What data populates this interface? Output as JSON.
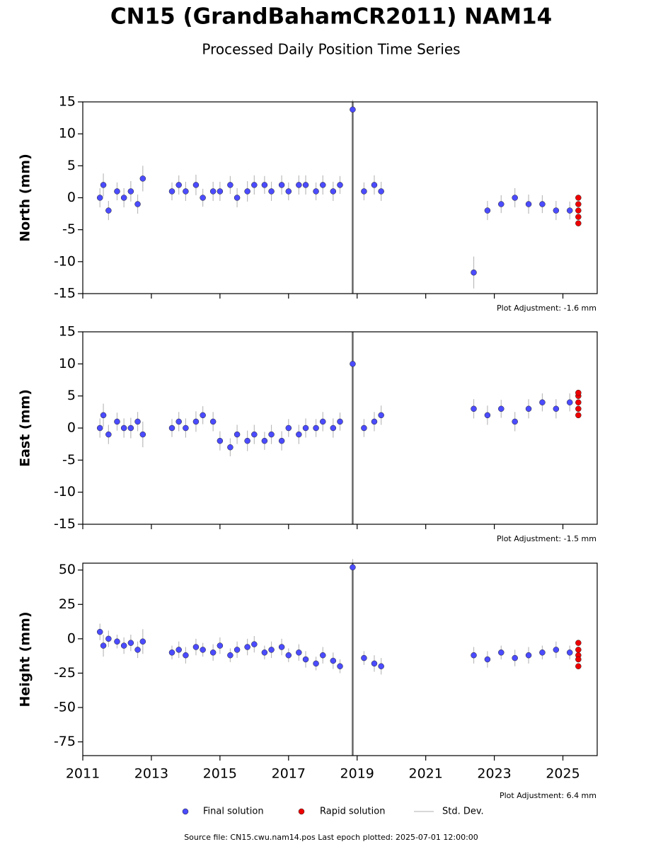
{
  "title": "CN15 (GrandBahamCR2011) NAM14",
  "subtitle": "Processed Daily Position Time Series",
  "errorbar_label": "Std. Dev.",
  "footer": "Source file: CN15.cwu.nam14.pos  Last epoch plotted: 2025-07-01 12:00:00",
  "chart_data": [
    {
      "type": "scatter",
      "ylabel": "North (mm)",
      "annotation": "Plot Adjustment: -1.6 mm",
      "xlim": [
        2011,
        2026
      ],
      "xticks": [
        2011,
        2013,
        2015,
        2017,
        2019,
        2021,
        2023,
        2025
      ],
      "ylim": [
        -15,
        15
      ],
      "yticks": [
        -15,
        -10,
        -5,
        0,
        5,
        10,
        15
      ],
      "event_lines": [
        2018.87
      ],
      "series": [
        {
          "name": "Final solution",
          "color": "#4b4bff",
          "x": [
            2011.5,
            2011.6,
            2011.75,
            2012.0,
            2012.2,
            2012.4,
            2012.6,
            2012.75,
            2013.6,
            2013.8,
            2014.0,
            2014.3,
            2014.5,
            2014.8,
            2015.0,
            2015.3,
            2015.5,
            2015.8,
            2016.0,
            2016.3,
            2016.5,
            2016.8,
            2017.0,
            2017.3,
            2017.5,
            2017.8,
            2018.0,
            2018.3,
            2018.5,
            2018.87,
            2019.2,
            2019.5,
            2019.7,
            2022.4,
            2022.8,
            2023.2,
            2023.6,
            2024.0,
            2024.4,
            2024.8,
            2025.2
          ],
          "values": [
            0,
            2,
            -2,
            1,
            0,
            1,
            -1,
            3,
            1,
            2,
            1,
            2,
            0,
            1,
            1,
            2,
            0,
            1,
            2,
            2,
            1,
            2,
            1,
            2,
            2,
            1,
            2,
            1,
            2,
            13.8,
            1,
            2,
            1,
            -11.7,
            -2,
            -1,
            0,
            -1,
            -1,
            -2,
            -2
          ],
          "errors": [
            1.5,
            1.8,
            1.5,
            1.4,
            1.5,
            1.6,
            1.5,
            2,
            1.4,
            1.5,
            1.5,
            1.6,
            1.4,
            1.5,
            1.5,
            1.4,
            1.5,
            1.6,
            1.5,
            1.4,
            1.5,
            1.5,
            1.4,
            1.5,
            1.5,
            1.4,
            1.5,
            1.5,
            1.4,
            1.5,
            1.4,
            1.5,
            1.5,
            2.5,
            1.5,
            1.4,
            1.5,
            1.5,
            1.4,
            1.5,
            1.4
          ]
        },
        {
          "name": "Rapid solution",
          "color": "#ee0000",
          "x": [
            2025.45,
            2025.45,
            2025.45,
            2025.45,
            2025.45
          ],
          "values": [
            0,
            -1,
            -2,
            -3,
            -4
          ]
        }
      ]
    },
    {
      "type": "scatter",
      "ylabel": "East (mm)",
      "annotation": "Plot Adjustment: -1.5 mm",
      "xlim": [
        2011,
        2026
      ],
      "xticks": [
        2011,
        2013,
        2015,
        2017,
        2019,
        2021,
        2023,
        2025
      ],
      "ylim": [
        -15,
        15
      ],
      "yticks": [
        -15,
        -10,
        -5,
        0,
        5,
        10,
        15
      ],
      "event_lines": [
        2018.87
      ],
      "series": [
        {
          "name": "Final solution",
          "color": "#4b4bff",
          "x": [
            2011.5,
            2011.6,
            2011.75,
            2012.0,
            2012.2,
            2012.4,
            2012.6,
            2012.75,
            2013.6,
            2013.8,
            2014.0,
            2014.3,
            2014.5,
            2014.8,
            2015.0,
            2015.3,
            2015.5,
            2015.8,
            2016.0,
            2016.3,
            2016.5,
            2016.8,
            2017.0,
            2017.3,
            2017.5,
            2017.8,
            2018.0,
            2018.3,
            2018.5,
            2018.87,
            2019.2,
            2019.5,
            2019.7,
            2022.4,
            2022.8,
            2023.2,
            2023.6,
            2024.0,
            2024.4,
            2024.8,
            2025.2
          ],
          "values": [
            0,
            2,
            -1,
            1,
            0,
            0,
            1,
            -1,
            0,
            1,
            0,
            1,
            2,
            1,
            -2,
            -3,
            -1,
            -2,
            -1,
            -2,
            -1,
            -2,
            0,
            -1,
            0,
            0,
            1,
            0,
            1,
            10,
            0,
            1,
            2,
            3,
            2,
            3,
            1,
            3,
            4,
            3,
            4
          ],
          "errors": [
            1.5,
            1.8,
            1.5,
            1.4,
            1.5,
            1.6,
            1.5,
            2,
            1.4,
            1.5,
            1.5,
            1.6,
            1.4,
            1.5,
            1.5,
            1.4,
            1.5,
            1.6,
            1.5,
            1.4,
            1.5,
            1.5,
            1.4,
            1.5,
            1.5,
            1.4,
            1.5,
            1.5,
            1.4,
            1.5,
            1.4,
            1.5,
            1.5,
            1.5,
            1.5,
            1.4,
            1.5,
            1.5,
            1.4,
            1.5,
            1.4
          ]
        },
        {
          "name": "Rapid solution",
          "color": "#ee0000",
          "x": [
            2025.45,
            2025.45,
            2025.45,
            2025.45,
            2025.45
          ],
          "values": [
            2,
            3,
            4,
            5,
            5.5
          ]
        }
      ]
    },
    {
      "type": "scatter",
      "ylabel": "Height (mm)",
      "annotation": "Plot Adjustment: 6.4 mm",
      "xlim": [
        2011,
        2026
      ],
      "xticks": [
        2011,
        2013,
        2015,
        2017,
        2019,
        2021,
        2023,
        2025
      ],
      "ylim": [
        -85,
        55
      ],
      "yticks": [
        -75,
        -50,
        -25,
        0,
        25,
        50
      ],
      "event_lines": [
        2018.87
      ],
      "series": [
        {
          "name": "Final solution",
          "color": "#4b4bff",
          "x": [
            2011.5,
            2011.6,
            2011.75,
            2012.0,
            2012.2,
            2012.4,
            2012.6,
            2012.75,
            2013.6,
            2013.8,
            2014.0,
            2014.3,
            2014.5,
            2014.8,
            2015.0,
            2015.3,
            2015.5,
            2015.8,
            2016.0,
            2016.3,
            2016.5,
            2016.8,
            2017.0,
            2017.3,
            2017.5,
            2017.8,
            2018.0,
            2018.3,
            2018.5,
            2018.87,
            2019.2,
            2019.5,
            2019.7,
            2022.4,
            2022.8,
            2023.2,
            2023.6,
            2024.0,
            2024.4,
            2024.8,
            2025.2
          ],
          "values": [
            5,
            -5,
            0,
            -2,
            -5,
            -3,
            -8,
            -2,
            -10,
            -8,
            -12,
            -6,
            -8,
            -10,
            -5,
            -12,
            -8,
            -6,
            -4,
            -10,
            -8,
            -6,
            -12,
            -10,
            -15,
            -18,
            -12,
            -16,
            -20,
            52,
            -14,
            -18,
            -20,
            -12,
            -15,
            -10,
            -14,
            -12,
            -10,
            -8,
            -10
          ],
          "errors": [
            6,
            8,
            6,
            5,
            6,
            6,
            6,
            9,
            5,
            6,
            6,
            6,
            5,
            6,
            6,
            5,
            6,
            6,
            6,
            5,
            6,
            6,
            5,
            6,
            6,
            5,
            6,
            6,
            5,
            6,
            5,
            6,
            6,
            6,
            6,
            5,
            6,
            6,
            5,
            6,
            5
          ]
        },
        {
          "name": "Rapid solution",
          "color": "#ee0000",
          "x": [
            2025.45,
            2025.45,
            2025.45,
            2025.45,
            2025.45
          ],
          "values": [
            -3,
            -8,
            -12,
            -15,
            -20
          ]
        }
      ]
    }
  ]
}
